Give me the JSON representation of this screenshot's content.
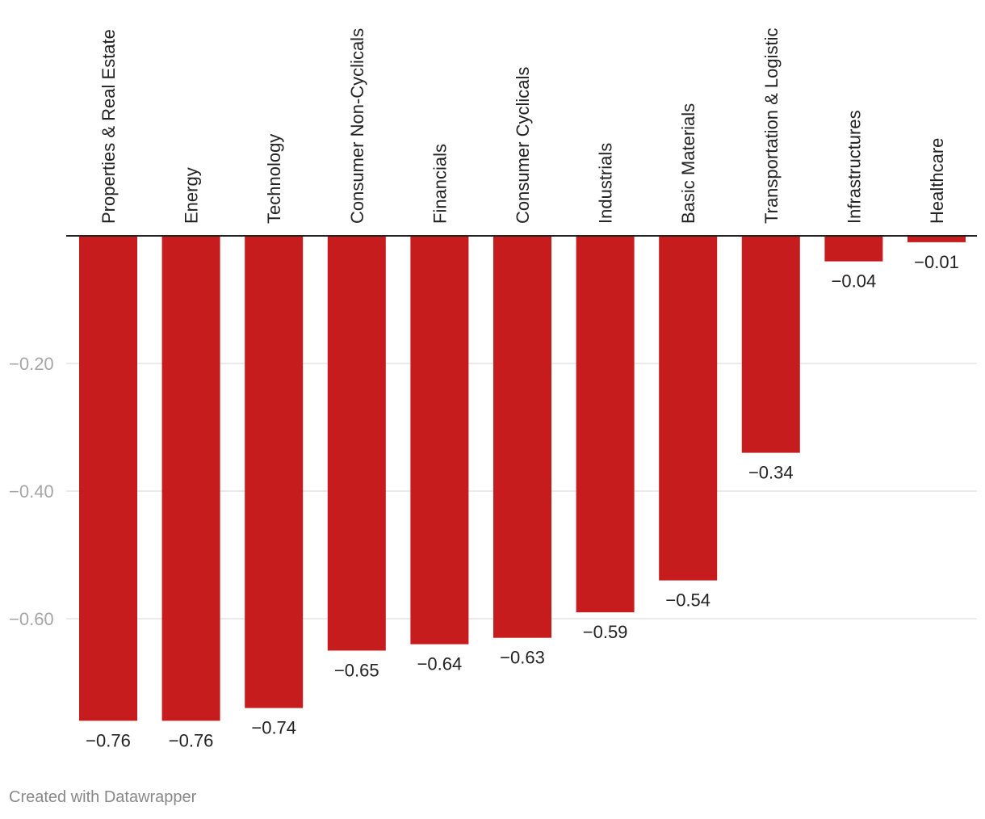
{
  "chart_data": {
    "type": "bar",
    "orientation": "vertical",
    "categories": [
      "Properties & Real Estate",
      "Energy",
      "Technology",
      "Consumer Non-Cyclicals",
      "Financials",
      "Consumer Cyclicals",
      "Industrials",
      "Basic Materials",
      "Transportation & Logistic",
      "Infrastructures",
      "Healthcare"
    ],
    "values": [
      -0.76,
      -0.76,
      -0.74,
      -0.65,
      -0.64,
      -0.63,
      -0.59,
      -0.54,
      -0.34,
      -0.04,
      -0.01
    ],
    "value_labels": [
      "−0.76",
      "−0.76",
      "−0.74",
      "−0.65",
      "−0.64",
      "−0.63",
      "−0.59",
      "−0.54",
      "−0.34",
      "−0.04",
      "−0.01"
    ],
    "y_ticks": [
      -0.2,
      -0.4,
      -0.6
    ],
    "y_tick_labels": [
      "−0.20",
      "−0.40",
      "−0.60"
    ],
    "ylim": [
      -0.76,
      0
    ],
    "grid": true,
    "legend": "none",
    "colors": {
      "bar": "#c71c1e",
      "grid": "#e3e3e3",
      "baseline": "#222222"
    }
  },
  "footer": {
    "credit": "Created with Datawrapper"
  }
}
